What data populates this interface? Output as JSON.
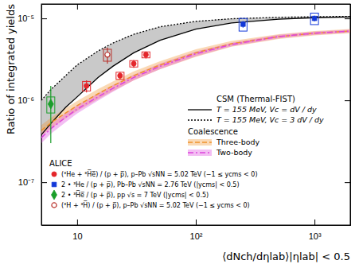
{
  "chart_data": {
    "type": "scatter",
    "x_label": "⟨dNch/dηlab⟩|ηlab| < 0.5",
    "y_label": "Ratio of integrated yields",
    "log": true,
    "legend": "lower left",
    "annotations": [
      "CSM (Thermal-FIST)",
      "Coalescence",
      "ALICE"
    ],
    "xlim": [
      5,
      2000
    ],
    "ylim": [
      3e-08,
      1.5e-05
    ],
    "xticks": [
      10,
      {
        "value": 100,
        "label": "10²"
      },
      {
        "value": 1000,
        "label": "10³"
      }
    ],
    "yticks": [
      {
        "value": 1e-07,
        "label": "10⁻⁷"
      },
      {
        "value": 1e-06,
        "label": "10⁻⁶"
      },
      {
        "value": 1e-05,
        "label": "10⁻⁵"
      }
    ],
    "series": [
      {
        "name": "T = 155 MeV, Vc = dV / dy",
        "type": "line",
        "line_style": "solid",
        "color": "#000000",
        "x": [
          5,
          6,
          8,
          10,
          15,
          20,
          30,
          50,
          100,
          200,
          500,
          1000,
          2000
        ],
        "values": [
          3.8e-07,
          5.2e-07,
          8.2e-07,
          1.1e-06,
          1.9e-06,
          2.6e-06,
          3.8e-06,
          5.4e-06,
          7.4e-06,
          8.8e-06,
          9.8e-06,
          1.02e-05,
          1.04e-05
        ]
      },
      {
        "name": "T = 155 MeV, Vc = 3 dV / dy",
        "type": "line",
        "line_style": "dotted",
        "color": "#000000",
        "x": [
          5,
          6,
          8,
          10,
          15,
          20,
          30,
          50,
          100,
          200,
          500,
          1000,
          2000
        ],
        "values": [
          1e-06,
          1.35e-06,
          2e-06,
          2.7e-06,
          4e-06,
          5e-06,
          6.4e-06,
          7.9e-06,
          9.2e-06,
          9.9e-06,
          1.03e-05,
          1.05e-05,
          1.06e-05
        ]
      },
      {
        "name": "Three-body",
        "type": "line",
        "line_style": "dashed",
        "color": "#f0922b",
        "x": [
          5,
          6,
          8,
          10,
          15,
          20,
          30,
          50,
          100,
          200,
          500,
          1000,
          2000
        ],
        "values": [
          4.3e-07,
          5.3e-07,
          7e-07,
          8.6e-07,
          1.2e-06,
          1.5e-06,
          2e-06,
          2.7e-06,
          3.8e-06,
          4.9e-06,
          6e-06,
          6.6e-06,
          7e-06
        ],
        "band_low": [
          3.7e-07,
          4.5e-07,
          6e-07,
          7.4e-07,
          1.03e-06,
          1.3e-06,
          1.75e-06,
          2.4e-06,
          3.4e-06,
          4.5e-06,
          5.6e-06,
          6.2e-06,
          6.6e-06
        ],
        "band_high": [
          5e-07,
          6.1e-07,
          8e-07,
          9.8e-07,
          1.37e-06,
          1.7e-06,
          2.25e-06,
          3e-06,
          4.2e-06,
          5.3e-06,
          6.4e-06,
          7e-06,
          7.4e-06
        ]
      },
      {
        "name": "Two-body",
        "type": "line",
        "line_style": "dashdot",
        "color": "#dd44dd",
        "x": [
          5,
          6,
          8,
          10,
          15,
          20,
          30,
          50,
          100,
          200,
          500,
          1000,
          2000
        ],
        "values": [
          3.5e-07,
          4.5e-07,
          6.2e-07,
          7.8e-07,
          1.1e-06,
          1.4e-06,
          1.9e-06,
          2.6e-06,
          3.7e-06,
          4.8e-06,
          6e-06,
          6.6e-06,
          7e-06
        ],
        "band_low": [
          3e-07,
          3.9e-07,
          5.4e-07,
          6.9e-07,
          9.9e-07,
          1.27e-06,
          1.75e-06,
          2.4e-06,
          3.45e-06,
          4.55e-06,
          5.7e-06,
          6.3e-06,
          6.7e-06
        ],
        "band_high": [
          4e-07,
          5.1e-07,
          7e-07,
          8.7e-07,
          1.21e-06,
          1.53e-06,
          2.05e-06,
          2.8e-06,
          3.95e-06,
          5.05e-06,
          6.3e-06,
          6.9e-06,
          7.3e-06
        ]
      },
      {
        "name": "(³He + ³H̅e̅) / (p + p̅), p–Pb √sNN = 5.02 TeV (−1 ≤ ycms < 0)",
        "type": "scatter",
        "marker": "circle",
        "color": "#e3262b",
        "x": [
          12,
          23,
          30,
          38
        ],
        "values": [
          1.5e-06,
          2e-06,
          2.8e-06,
          3.6e-06
        ],
        "errors": [
          2.5e-07,
          2e-07,
          3e-07,
          3.5e-07
        ],
        "syst": [
          2e-07,
          2e-07,
          2.5e-07,
          3e-07
        ]
      },
      {
        "name": "2 • ³He / (p + p̅), Pb–Pb √sNN = 2.76 TeV (|ycms| < 0.5)",
        "type": "scatter",
        "marker": "square",
        "color": "#1238d8",
        "x": [
          250,
          1000
        ],
        "values": [
          8.5e-06,
          1e-05
        ],
        "errors": [
          8e-07,
          8e-07
        ],
        "syst": [
          1.5e-06,
          1.6e-06
        ]
      },
      {
        "name": "2 • ³H̅e̅ / (p + p̅), pp √s = 7 TeV (|ycms| < 0.5)",
        "type": "scatter",
        "marker": "diamond",
        "color": "#1a9e2a",
        "x": [
          6
        ],
        "values": [
          9e-07
        ],
        "errors": [
          6e-07
        ],
        "syst": [
          2e-07
        ]
      },
      {
        "name": "(³H + ³H̅) / (p + p̅), p–Pb √sNN = 5.02 TeV (−1 ≤ ycms < 0)",
        "type": "scatter",
        "marker": "circle-open",
        "color": "#b8322c",
        "x": [
          18
        ],
        "values": [
          3.6e-06
        ],
        "errors": [
          8e-07
        ],
        "syst": [
          6e-07
        ]
      }
    ]
  }
}
